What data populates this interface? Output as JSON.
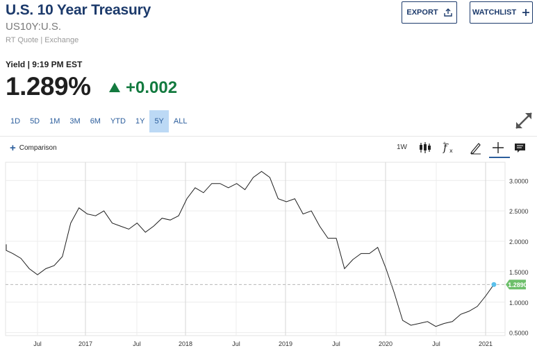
{
  "header": {
    "title": "U.S. 10 Year Treasury",
    "symbol": "US10Y:U.S.",
    "source": "RT Quote | Exchange",
    "export_label": "EXPORT",
    "watchlist_label": "WATCHLIST"
  },
  "quote": {
    "label": "Yield | 9:19 PM EST",
    "price": "1.289%",
    "change": "+0.002",
    "change_color": "#137a3f"
  },
  "ranges": [
    "1D",
    "5D",
    "1M",
    "3M",
    "6M",
    "YTD",
    "1Y",
    "5Y",
    "ALL"
  ],
  "active_range": "5Y",
  "toolbar": {
    "comparison_label": "Comparison",
    "interval_label": "1W",
    "icons": [
      "candlestick-icon",
      "function-icon",
      "pencil-icon",
      "crosshair-icon",
      "comment-icon"
    ]
  },
  "chart_data": {
    "type": "line",
    "x_tick_labels": [
      "Jul",
      "2017",
      "Jul",
      "2018",
      "Jul",
      "2019",
      "Jul",
      "2020",
      "Jul",
      "2021"
    ],
    "y_tick_labels": [
      "0.5000",
      "1.0000",
      "1.5000",
      "2.0000",
      "2.5000",
      "3.0000"
    ],
    "ylim": [
      0.45,
      3.3
    ],
    "last_value_label": "1.2890",
    "last_value": 1.289,
    "line_color": "#1f1f1f",
    "last_value_color": "#6cbf6a",
    "grid": true,
    "series": [
      {
        "x": [
          "2016-02",
          "2016-03",
          "2016-04",
          "2016-05",
          "2016-06",
          "2016-07",
          "2016-08",
          "2016-09",
          "2016-10",
          "2016-11",
          "2016-12",
          "2017-01",
          "2017-02",
          "2017-03",
          "2017-04",
          "2017-05",
          "2017-06",
          "2017-07",
          "2017-08",
          "2017-09",
          "2017-10",
          "2017-11",
          "2017-12",
          "2018-01",
          "2018-02",
          "2018-03",
          "2018-04",
          "2018-05",
          "2018-06",
          "2018-07",
          "2018-08",
          "2018-09",
          "2018-10",
          "2018-11",
          "2018-12",
          "2019-01",
          "2019-02",
          "2019-03",
          "2019-04",
          "2019-05",
          "2019-06",
          "2019-07",
          "2019-08",
          "2019-09",
          "2019-10",
          "2019-11",
          "2019-12",
          "2020-01",
          "2020-02",
          "2020-03",
          "2020-04",
          "2020-05",
          "2020-06",
          "2020-07",
          "2020-08",
          "2020-09",
          "2020-10",
          "2020-11",
          "2020-12",
          "2021-01",
          "2021-02"
        ],
        "values": [
          1.95,
          1.85,
          1.8,
          1.72,
          1.55,
          1.45,
          1.55,
          1.6,
          1.75,
          2.3,
          2.55,
          2.45,
          2.42,
          2.5,
          2.3,
          2.25,
          2.2,
          2.3,
          2.15,
          2.25,
          2.38,
          2.35,
          2.42,
          2.7,
          2.88,
          2.8,
          2.95,
          2.95,
          2.88,
          2.95,
          2.85,
          3.05,
          3.15,
          3.05,
          2.7,
          2.65,
          2.7,
          2.45,
          2.5,
          2.25,
          2.05,
          2.05,
          1.55,
          1.7,
          1.8,
          1.8,
          1.9,
          1.55,
          1.15,
          0.7,
          0.62,
          0.65,
          0.68,
          0.6,
          0.65,
          0.68,
          0.8,
          0.85,
          0.93,
          1.1,
          1.29
        ]
      }
    ]
  }
}
